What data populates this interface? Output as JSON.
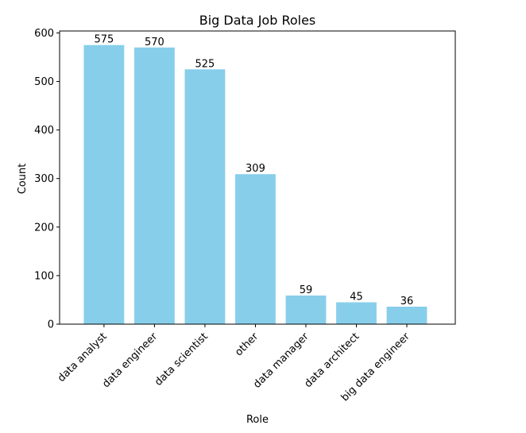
{
  "chart_data": {
    "type": "bar",
    "title": "Big Data Job Roles",
    "xlabel": "Role",
    "ylabel": "Count",
    "categories": [
      "data analyst",
      "data engineer",
      "data scientist",
      "other",
      "data manager",
      "data architect",
      "big data engineer"
    ],
    "values": [
      575,
      570,
      525,
      309,
      59,
      45,
      36
    ],
    "ylim": [
      0,
      604
    ],
    "yticks": [
      0,
      100,
      200,
      300,
      400,
      500,
      600
    ],
    "bar_color": "#87CEEB",
    "grid": false,
    "legend": "none"
  }
}
